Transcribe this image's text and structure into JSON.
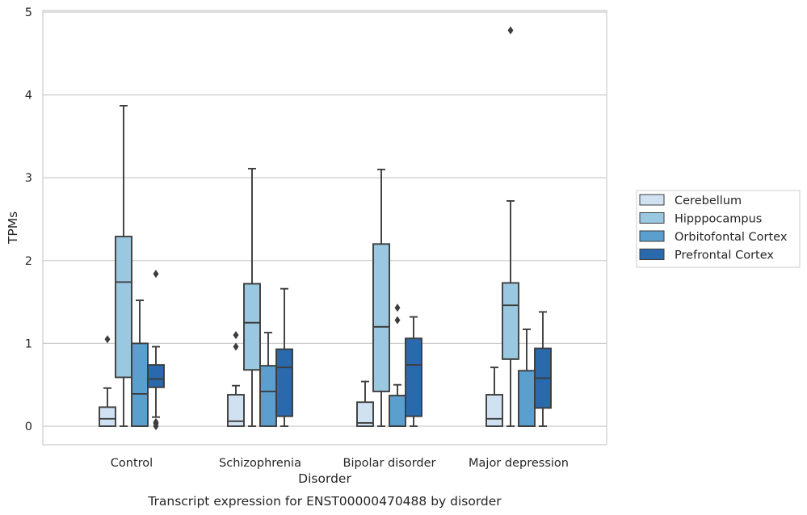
{
  "caption": "Transcript expression for ENST00000470488 by disorder",
  "chart_data": {
    "type": "box",
    "xlabel": "Disorder",
    "ylabel": "TPMs",
    "ylim": [
      -0.22,
      5.03
    ],
    "yticks": [
      0,
      1,
      2,
      3,
      4,
      5
    ],
    "grid": "horizontal",
    "legend_placement": "right",
    "categories": [
      "Control",
      "Schizophrenia",
      "Bipolar disorder",
      "Major depression"
    ],
    "series": [
      {
        "name": "Cerebellum",
        "color": "#d0e1f2",
        "boxes": [
          {
            "whisker_low": 0,
            "q1": 0,
            "median": 0.09,
            "q3": 0.23,
            "whisker_high": 0.46,
            "outliers": [
              1.05
            ]
          },
          {
            "whisker_low": 0,
            "q1": 0,
            "median": 0.06,
            "q3": 0.38,
            "whisker_high": 0.49,
            "outliers": [
              0.96,
              1.1
            ]
          },
          {
            "whisker_low": 0,
            "q1": 0,
            "median": 0.04,
            "q3": 0.29,
            "whisker_high": 0.54,
            "outliers": []
          },
          {
            "whisker_low": 0,
            "q1": 0,
            "median": 0.09,
            "q3": 0.38,
            "whisker_high": 0.71,
            "outliers": []
          }
        ]
      },
      {
        "name": "Hipppocampus",
        "color": "#9ac8e0",
        "boxes": [
          {
            "whisker_low": 0,
            "q1": 0.59,
            "median": 1.74,
            "q3": 2.29,
            "whisker_high": 3.87,
            "outliers": []
          },
          {
            "whisker_low": 0,
            "q1": 0.68,
            "median": 1.25,
            "q3": 1.72,
            "whisker_high": 3.11,
            "outliers": []
          },
          {
            "whisker_low": 0,
            "q1": 0.42,
            "median": 1.2,
            "q3": 2.2,
            "whisker_high": 3.1,
            "outliers": []
          },
          {
            "whisker_low": 0,
            "q1": 0.81,
            "median": 1.46,
            "q3": 1.73,
            "whisker_high": 2.72,
            "outliers": [
              4.78
            ]
          }
        ]
      },
      {
        "name": "Orbitofontal Cortex",
        "color": "#5a9fcd",
        "boxes": [
          {
            "whisker_low": 0,
            "q1": 0,
            "median": 0.39,
            "q3": 1.0,
            "whisker_high": 1.52,
            "outliers": []
          },
          {
            "whisker_low": 0,
            "q1": 0,
            "median": 0.42,
            "q3": 0.73,
            "whisker_high": 1.13,
            "outliers": []
          },
          {
            "whisker_low": 0,
            "q1": 0,
            "median": 0.0,
            "q3": 0.37,
            "whisker_high": 0.5,
            "outliers": [
              1.28,
              1.43
            ]
          },
          {
            "whisker_low": 0,
            "q1": 0,
            "median": 0.0,
            "q3": 0.67,
            "whisker_high": 1.17,
            "outliers": []
          }
        ]
      },
      {
        "name": "Prefrontal Cortex",
        "color": "#2a69ab",
        "boxes": [
          {
            "whisker_low": 0.11,
            "q1": 0.47,
            "median": 0.57,
            "q3": 0.74,
            "whisker_high": 0.96,
            "outliers": [
              0.0,
              0.03,
              0.05,
              1.84
            ]
          },
          {
            "whisker_low": 0,
            "q1": 0.12,
            "median": 0.71,
            "q3": 0.93,
            "whisker_high": 1.66,
            "outliers": []
          },
          {
            "whisker_low": 0,
            "q1": 0.12,
            "median": 0.74,
            "q3": 1.06,
            "whisker_high": 1.32,
            "outliers": []
          },
          {
            "whisker_low": 0,
            "q1": 0.22,
            "median": 0.58,
            "q3": 0.94,
            "whisker_high": 1.38,
            "outliers": []
          }
        ]
      }
    ]
  }
}
